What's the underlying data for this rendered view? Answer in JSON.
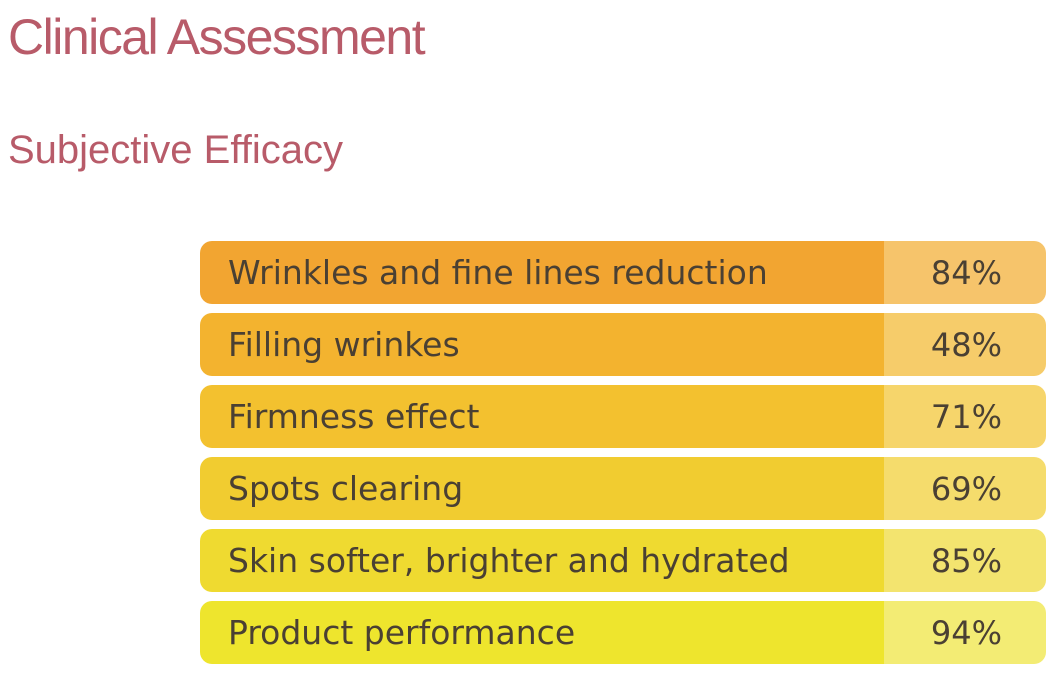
{
  "header": {
    "title": "Clinical Assessment",
    "subtitle": "Subjective Efficacy"
  },
  "results": [
    {
      "label": "Wrinkles and fine lines reduction",
      "value": "84%"
    },
    {
      "label": "Filling wrinkes",
      "value": "48%"
    },
    {
      "label": "Firmness effect",
      "value": "71%"
    },
    {
      "label": "Spots clearing",
      "value": "69%"
    },
    {
      "label": "Skin softer, brighter and hydrated",
      "value": "85%"
    },
    {
      "label": "Product performance",
      "value": "94%"
    }
  ],
  "colors": {
    "heading": "#b85b69",
    "text": "#4a4033",
    "row_labels": [
      "#f2a531",
      "#f3b32f",
      "#f3c12f",
      "#f1cc30",
      "#efda30",
      "#eee52d"
    ],
    "row_values": [
      "#f6c46b",
      "#f6cc6a",
      "#f6d56b",
      "#f5dc6c",
      "#f3e46f",
      "#f3ec74"
    ]
  }
}
